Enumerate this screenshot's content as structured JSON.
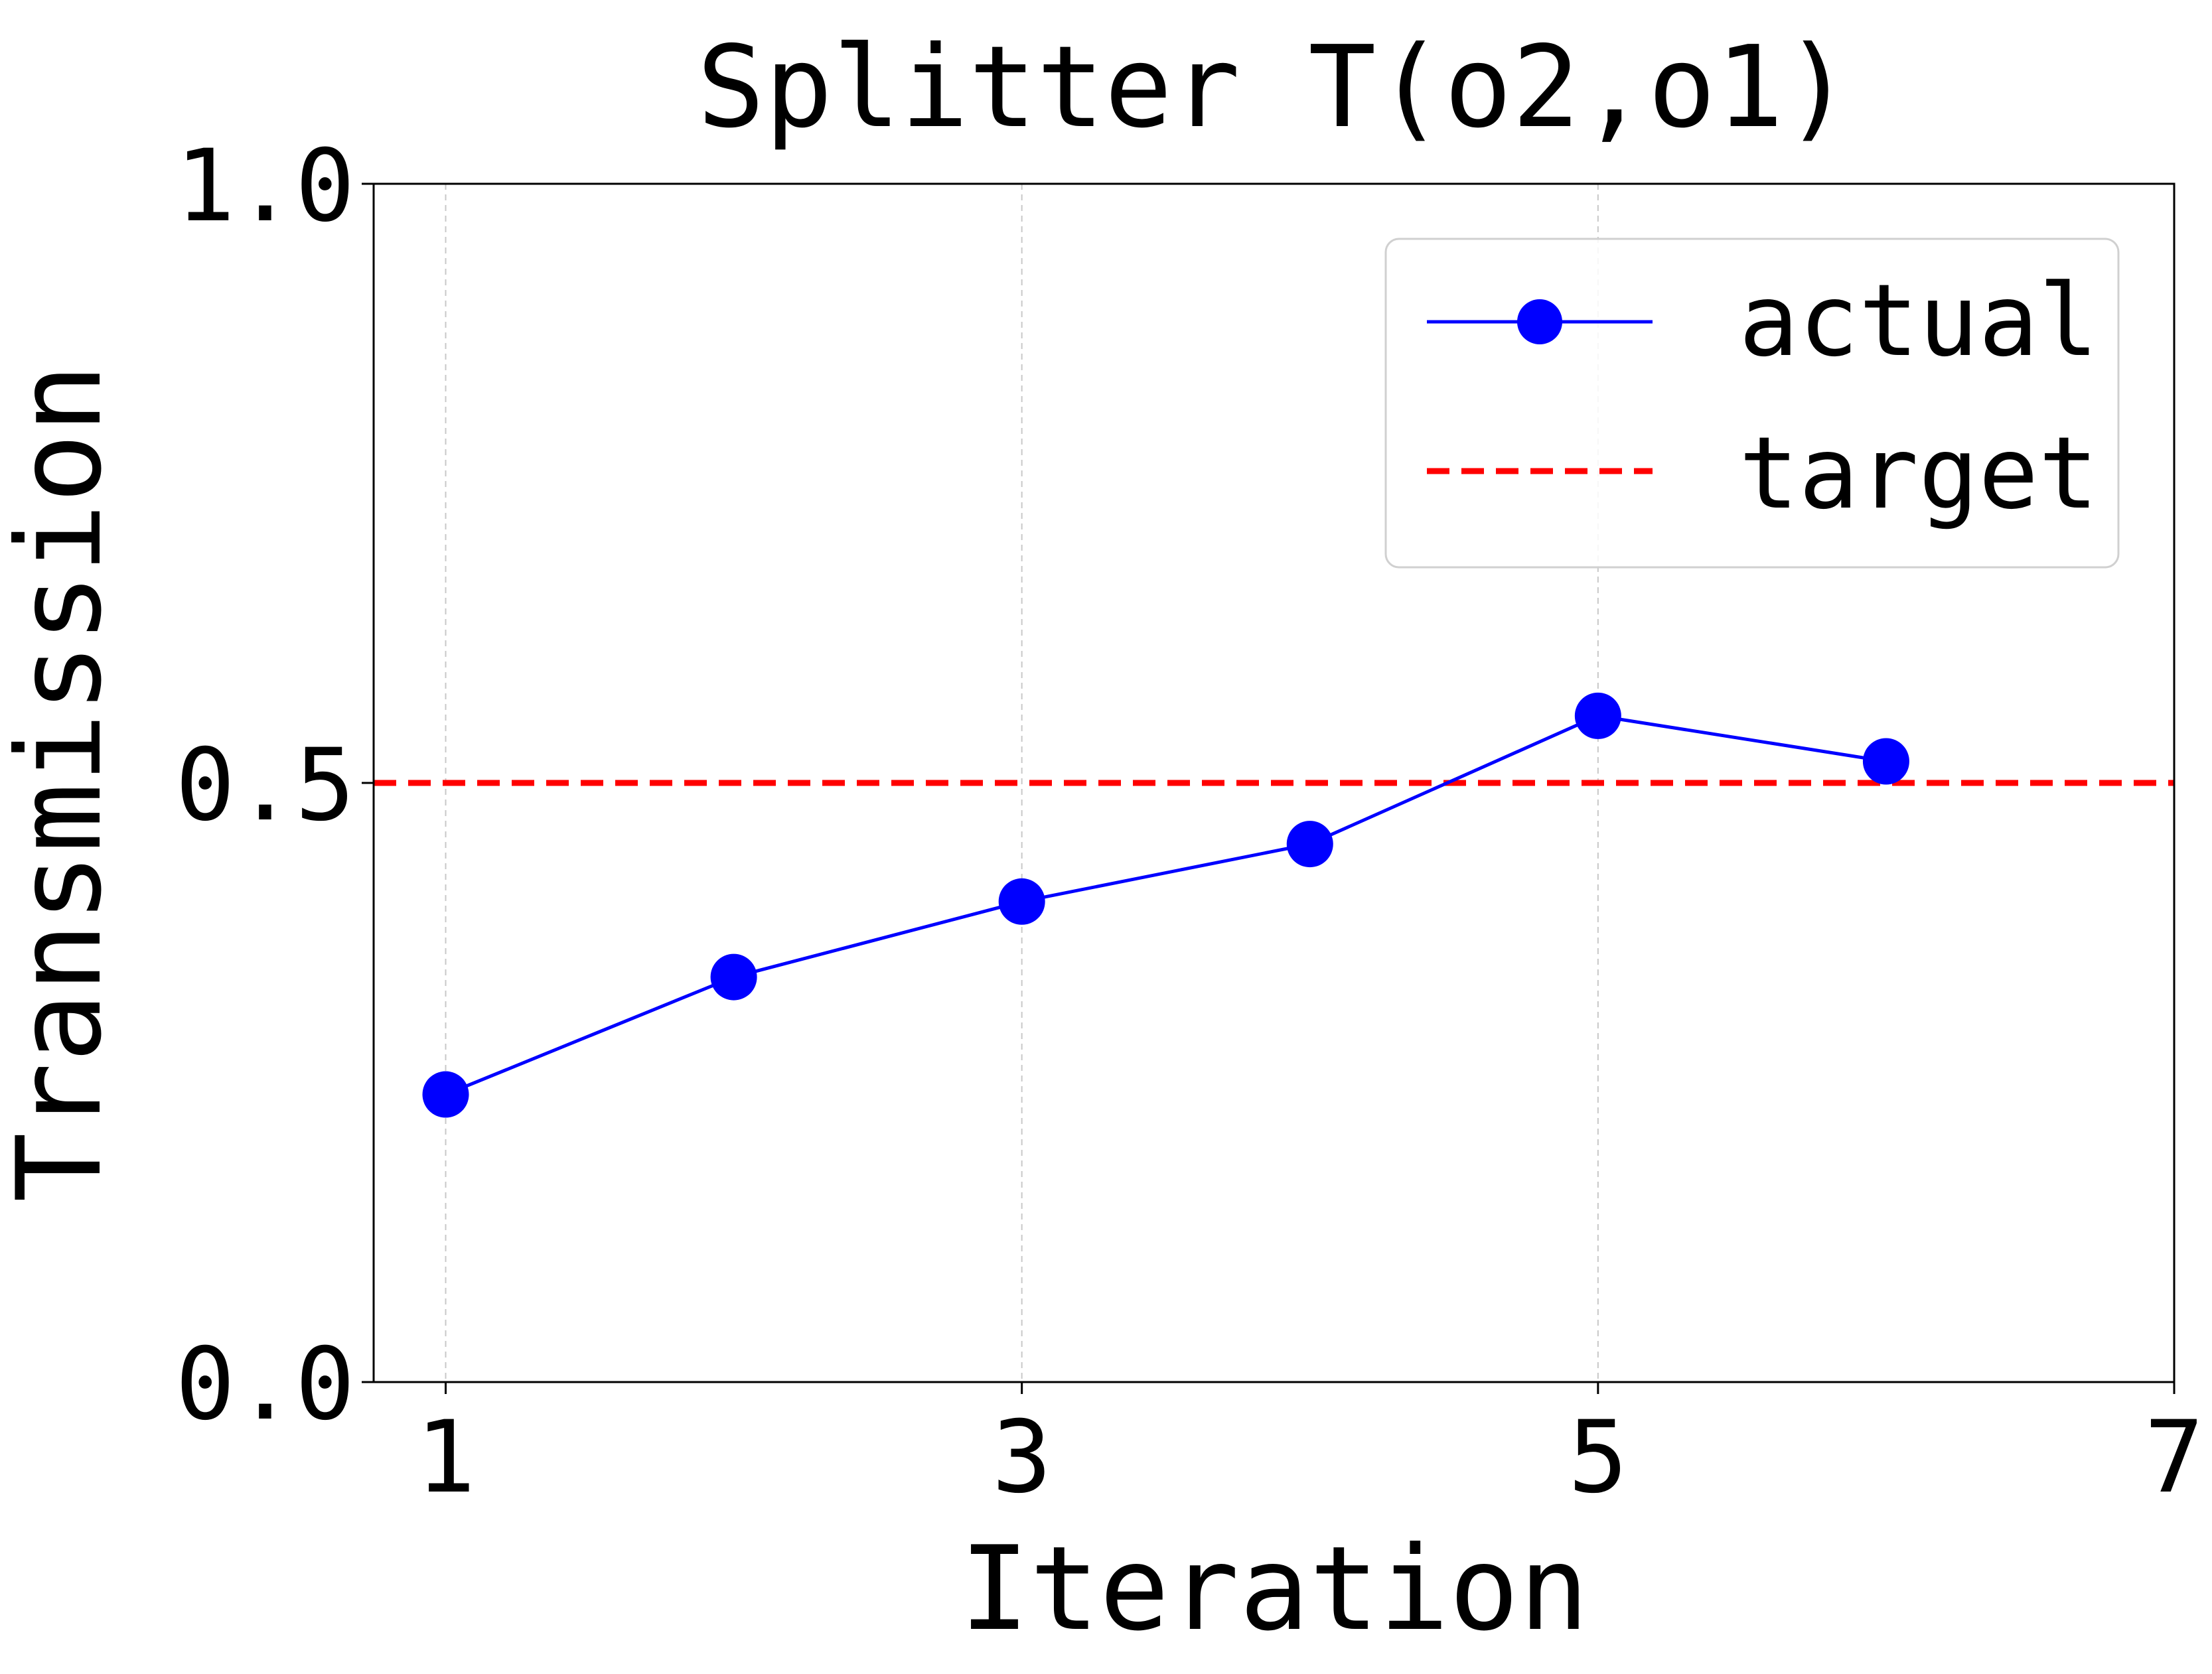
{
  "chart_data": {
    "type": "line",
    "title": "Splitter T(o2,o1)",
    "xlabel": "Iteration",
    "ylabel": "Transmission",
    "xlim": [
      0.75,
      7
    ],
    "ylim": [
      0,
      1
    ],
    "xticks": [
      1,
      3,
      5,
      7
    ],
    "xtick_labels": [
      "1",
      "3",
      "5",
      "7"
    ],
    "yticks": [
      0,
      0.5,
      1
    ],
    "ytick_labels": [
      "0.0",
      "0.5",
      "1.0"
    ],
    "grid": "vertical dashed lines at x ticks",
    "legend_position": "top-right",
    "series": [
      {
        "name": "actual",
        "color": "#0000ff",
        "marker": "circle",
        "line_style": "solid",
        "x": [
          1,
          2,
          3,
          4,
          5,
          6
        ],
        "y": [
          0.24,
          0.338,
          0.401,
          0.449,
          0.556,
          0.518
        ]
      },
      {
        "name": "target",
        "color": "#ff0000",
        "line_style": "dashed",
        "y_constant": 0.5
      }
    ]
  }
}
